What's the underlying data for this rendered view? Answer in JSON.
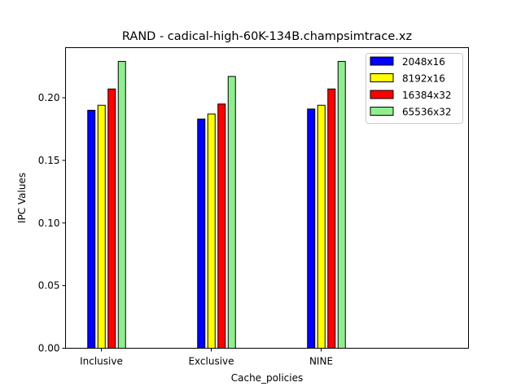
{
  "chart_data": {
    "type": "bar",
    "title": "RAND - cadical-high-60K-134B.champsimtrace.xz",
    "xlabel": "Cache_policies",
    "ylabel": "IPC Values",
    "categories": [
      "Inclusive",
      "Exclusive",
      "NINE"
    ],
    "ylim": [
      0,
      0.24
    ],
    "yticks": [
      "0.00",
      "0.05",
      "0.10",
      "0.15",
      "0.20"
    ],
    "ytick_values": [
      0,
      0.05,
      0.1,
      0.15,
      0.2
    ],
    "grid": false,
    "legend_position": "top-right",
    "series": [
      {
        "name": "2048x16",
        "color": "#0000ff",
        "values": [
          0.19,
          0.183,
          0.191
        ]
      },
      {
        "name": "8192x16",
        "color": "#ffff00",
        "values": [
          0.194,
          0.187,
          0.194
        ]
      },
      {
        "name": "16384x32",
        "color": "#ff0000",
        "values": [
          0.207,
          0.195,
          0.207
        ]
      },
      {
        "name": "65536x32",
        "color": "#90ee90",
        "values": [
          0.229,
          0.217,
          0.229
        ]
      }
    ]
  }
}
